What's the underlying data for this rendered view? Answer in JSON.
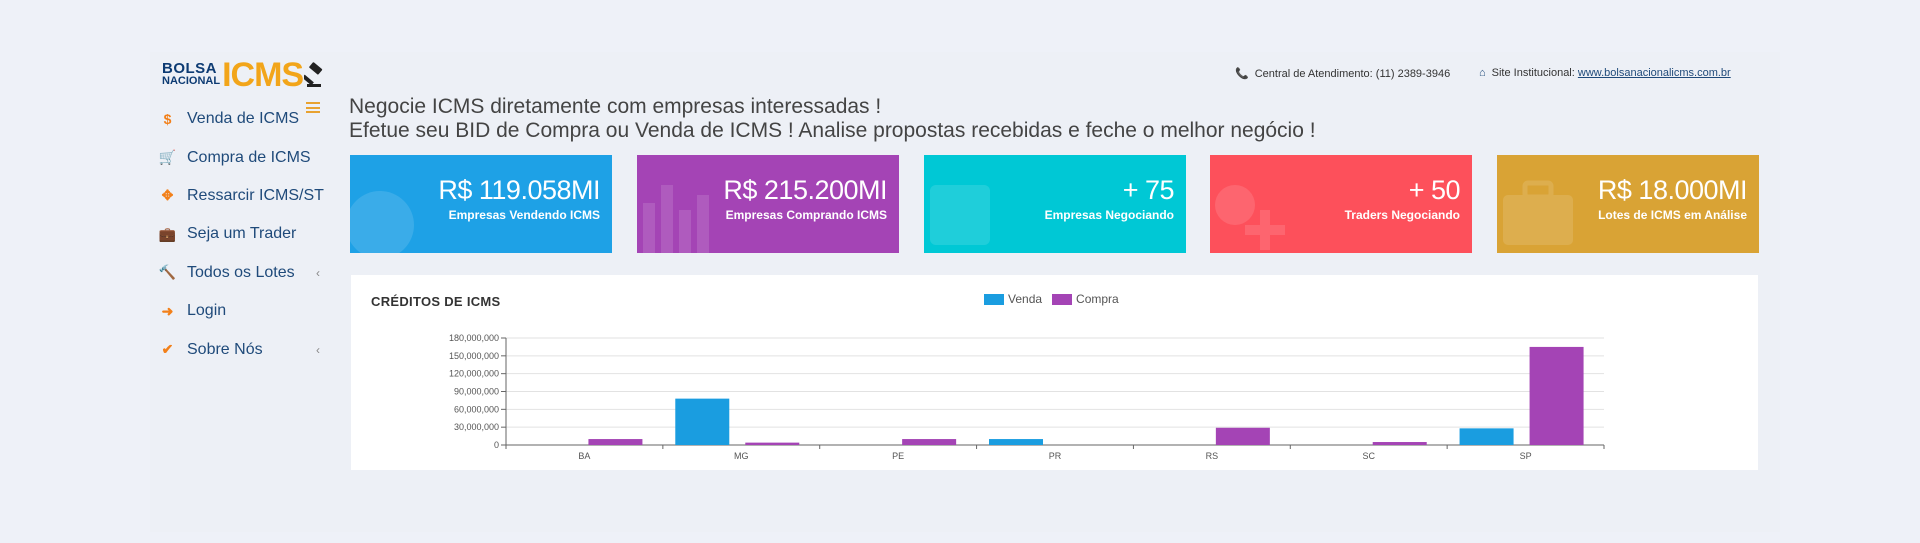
{
  "logo": {
    "line1": "BOLSA",
    "line2": "NACIONAL",
    "brand": "ICMS"
  },
  "sidebar": {
    "items": [
      {
        "label": "Venda de ICMS",
        "icon": "dollar-icon",
        "glyph": "$",
        "chevron": false
      },
      {
        "label": "Compra de ICMS",
        "icon": "cart-icon",
        "glyph": "🛒",
        "chevron": false
      },
      {
        "label": "Ressarcir ICMS/ST",
        "icon": "arrows-icon",
        "glyph": "✥",
        "chevron": false
      },
      {
        "label": "Seja um Trader",
        "icon": "briefcase-icon",
        "glyph": "💼",
        "chevron": false
      },
      {
        "label": "Todos os Lotes",
        "icon": "gavel-icon",
        "glyph": "🔨",
        "chevron": true
      },
      {
        "label": "Login",
        "icon": "sign-in-icon",
        "glyph": "➜",
        "chevron": false
      },
      {
        "label": "Sobre Nós",
        "icon": "check-circle-icon",
        "glyph": "✔",
        "chevron": true
      }
    ],
    "chevron_glyph": "‹"
  },
  "header": {
    "phone_label": "Central de Atendimento: (11) 2389-3946",
    "site_label": "Site Institucional:",
    "site_link": "www.bolsanacionalicms.com.br",
    "headline_1": "Negocie ICMS diretamente com empresas interessadas !",
    "headline_2": "Efetue seu BID de Compra ou Venda de ICMS ! Analise propostas recebidas e feche o melhor negócio !"
  },
  "cards": [
    {
      "value": "R$ 119.058MI",
      "caption": "Empresas Vendendo ICMS",
      "color": "#1ea1e6"
    },
    {
      "value": "R$ 215.200MI",
      "caption": "Empresas Comprando ICMS",
      "color": "#a444b5"
    },
    {
      "value": "+ 75",
      "caption": "Empresas Negociando",
      "color": "#00c8d5"
    },
    {
      "value": "+ 50",
      "caption": "Traders Negociando",
      "color": "#fd505b"
    },
    {
      "value": "R$ 18.000MI",
      "caption": "Lotes de ICMS em Análise",
      "color": "#d9a335"
    }
  ],
  "chart_panel": {
    "title": "CRÉDITOS DE ICMS"
  },
  "chart_data": {
    "type": "bar",
    "categories": [
      "BA",
      "MG",
      "PE",
      "PR",
      "RS",
      "SC",
      "SP"
    ],
    "series": [
      {
        "name": "Venda",
        "color": "#1a9de0",
        "values": [
          0,
          78000000,
          0,
          10000000,
          0,
          0,
          28000000
        ]
      },
      {
        "name": "Compra",
        "color": "#a444b5",
        "values": [
          10000000,
          4000000,
          10000000,
          0,
          29000000,
          5000000,
          165000000
        ]
      }
    ],
    "ylim": [
      0,
      180000000
    ],
    "yticks": [
      "0",
      "30,000,000",
      "60,000,000",
      "90,000,000",
      "120,000,000",
      "150,000,000",
      "180,000,000"
    ],
    "legend_position": "top-center",
    "grid": true
  }
}
